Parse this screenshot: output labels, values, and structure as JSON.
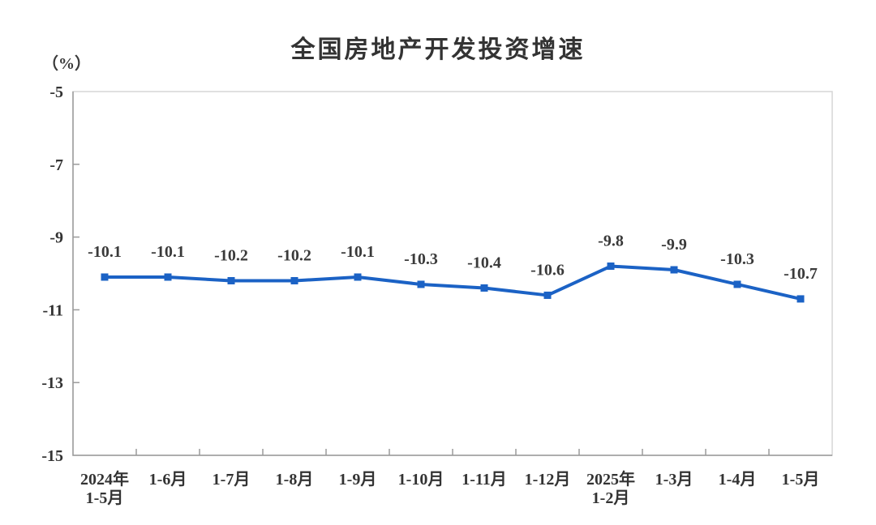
{
  "chart_data": {
    "type": "line",
    "title": "全国房地产开发投资增速",
    "unit_label": "（%）",
    "categories": [
      "2024年\n1-5月",
      "1-6月",
      "1-7月",
      "1-8月",
      "1-9月",
      "1-10月",
      "1-11月",
      "1-12月",
      "2025年\n1-2月",
      "1-3月",
      "1-4月",
      "1-5月"
    ],
    "values": [
      -10.1,
      -10.1,
      -10.2,
      -10.2,
      -10.1,
      -10.3,
      -10.4,
      -10.6,
      -9.8,
      -9.9,
      -10.3,
      -10.7
    ],
    "data_labels": [
      "-10.1",
      "-10.1",
      "-10.2",
      "-10.2",
      "-10.1",
      "-10.3",
      "-10.4",
      "-10.6",
      "-9.8",
      "-9.9",
      "-10.3",
      "-10.7"
    ],
    "ylim": [
      -15,
      -5
    ],
    "yticks": [
      -5,
      -7,
      -9,
      -11,
      -13,
      -15
    ],
    "grid": false,
    "legend_position": "none",
    "marker_shape": "square",
    "series_color": "#1b62c5",
    "axis_color": "#9a9a9a",
    "plot_border_color": "#d6d6d6",
    "tick_label_color": "#333333",
    "data_label_color": "#3a3a3a"
  }
}
